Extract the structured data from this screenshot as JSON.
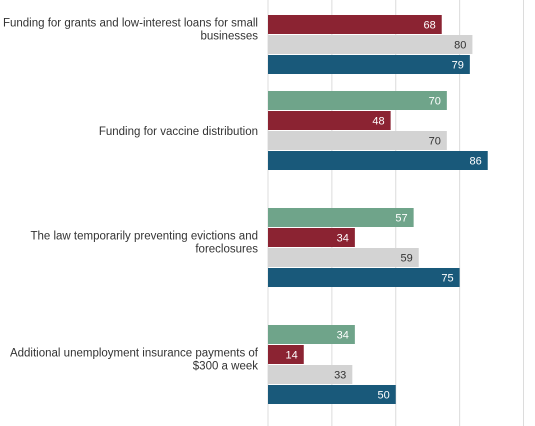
{
  "chart_data": {
    "type": "bar",
    "orientation": "horizontal",
    "title": "",
    "xlabel": "",
    "ylabel": "",
    "xlim": [
      0,
      100
    ],
    "grid": true,
    "categories": [
      "Funding for grants and low-interest loans for small businesses",
      "Funding for vaccine distribution",
      "The law temporarily preventing evictions and foreclosures",
      "Additional unemployment insurance payments of $300 a week"
    ],
    "category_label_lines": [
      [
        "Funding for grants and low-interest loans for small",
        "businesses"
      ],
      [
        "Funding for vaccine distribution"
      ],
      [
        "The law temporarily preventing evictions and",
        "foreclosures"
      ],
      [
        "Additional unemployment insurance payments of",
        "$300 a week"
      ]
    ],
    "series": [
      {
        "color": "#6fa48a",
        "label_color": "#ffffff",
        "values": [
          null,
          70,
          57,
          34
        ]
      },
      {
        "color": "#8b2332",
        "label_color": "#ffffff",
        "values": [
          68,
          48,
          34,
          14
        ]
      },
      {
        "color": "#d3d3d3",
        "label_color": "#333333",
        "values": [
          80,
          70,
          59,
          33
        ]
      },
      {
        "color": "#19597a",
        "label_color": "#ffffff",
        "values": [
          79,
          86,
          75,
          50
        ]
      }
    ]
  }
}
